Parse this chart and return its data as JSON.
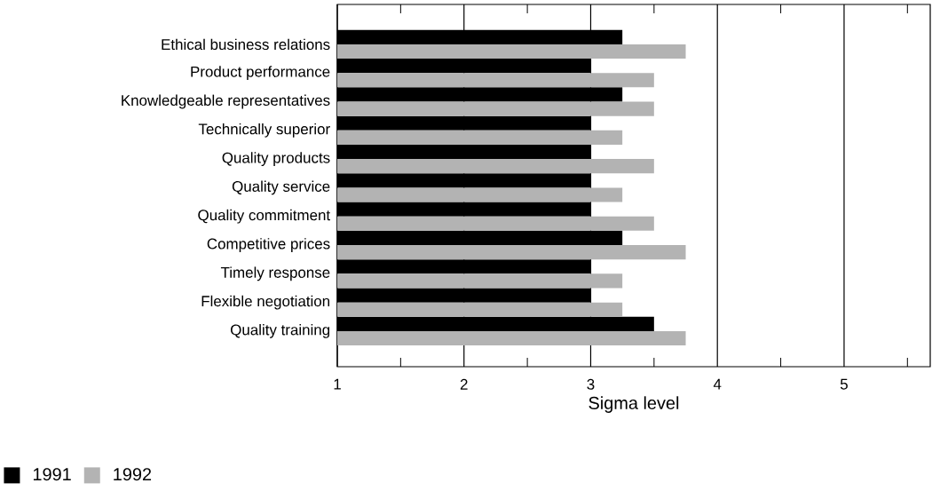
{
  "chart_data": {
    "type": "bar",
    "orientation": "horizontal",
    "xlabel": "Sigma level",
    "categories": [
      "Ethical business relations",
      "Product performance",
      "Knowledgeable representatives",
      "Technically superior",
      "Quality products",
      "Quality service",
      "Quality commitment",
      "Competitive prices",
      "Timely response",
      "Flexible negotiation",
      "Quality training"
    ],
    "series": [
      {
        "name": "1991",
        "color": "#000000",
        "values": [
          3.25,
          3.0,
          3.25,
          3.0,
          3.0,
          3.0,
          3.0,
          3.25,
          3.0,
          3.0,
          3.5
        ]
      },
      {
        "name": "1992",
        "color": "#b3b3b3",
        "values": [
          3.75,
          3.5,
          3.5,
          3.25,
          3.5,
          3.25,
          3.5,
          3.75,
          3.25,
          3.25,
          3.75
        ]
      }
    ],
    "xlim": [
      1,
      5.68
    ],
    "xticks": [
      1,
      {
        "value": 1.5,
        "label": null
      },
      2,
      {
        "value": 2.5,
        "label": null
      },
      3,
      {
        "value": 3.5,
        "label": null
      },
      4,
      {
        "value": 4.5,
        "label": null
      },
      5,
      {
        "value": 5.5,
        "label": null
      }
    ],
    "grid": "x",
    "legend": "bottom left"
  }
}
